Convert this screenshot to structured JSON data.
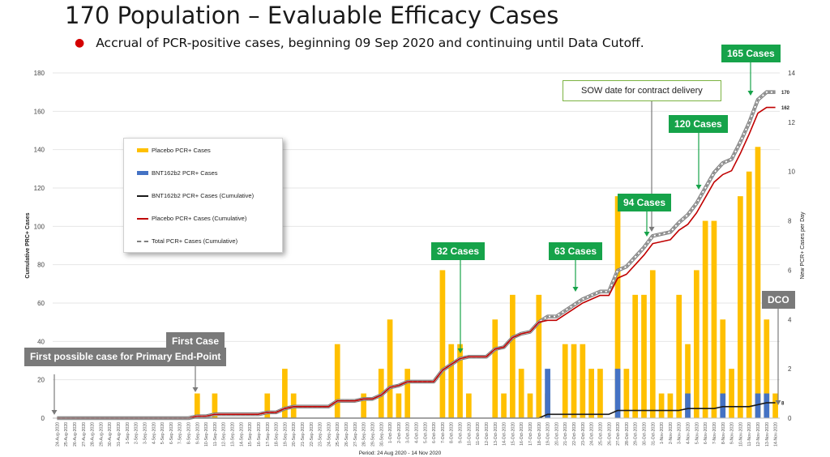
{
  "slide": {
    "title": "170 Population – Evaluable Efficacy Cases",
    "bullet": "Accrual of PCR-positive cases, beginning 09 Sep 2020 and continuing until Data Cutoff."
  },
  "colors": {
    "placebo": "#FFC000",
    "vaccine": "#4472C4",
    "vaccine_cum": "#1a1a1a",
    "placebo_cum": "#C00000",
    "total_cum": "#7f7f7f",
    "callout_green": "#16A34A",
    "callout_gray": "#7A7A7A"
  },
  "callouts": {
    "first_possible": "First possible case for Primary End-Point",
    "first_case": "First Case",
    "c32": "32 Cases",
    "c63": "63 Cases",
    "c94": "94 Cases",
    "c120": "120 Cases",
    "c165": "165 Cases",
    "sow": "SOW date for contract delivery",
    "dco": "DCO"
  },
  "chart_data": {
    "type": "bar",
    "xlabel": "Period: 24 Aug 2020 - 14 Nov 2020",
    "ylabel": "Cumulative PRC+ Cases",
    "y2label": "New PCR+ Cases per Day",
    "ylim": [
      0,
      180
    ],
    "y2lim": [
      0,
      14
    ],
    "yticks": [
      0,
      20,
      40,
      60,
      80,
      100,
      120,
      140,
      160,
      180
    ],
    "y2ticks": [
      0,
      2,
      4,
      6,
      8,
      10,
      12,
      14
    ],
    "grid": true,
    "legend_position": "upper-left",
    "categories": [
      "24-Aug-2020",
      "25-Aug-2020",
      "26-Aug-2020",
      "27-Aug-2020",
      "28-Aug-2020",
      "29-Aug-2020",
      "30-Aug-2020",
      "31-Aug-2020",
      "1-Sep-2020",
      "2-Sep-2020",
      "3-Sep-2020",
      "4-Sep-2020",
      "5-Sep-2020",
      "6-Sep-2020",
      "7-Sep-2020",
      "8-Sep-2020",
      "9-Sep-2020",
      "10-Sep-2020",
      "11-Sep-2020",
      "12-Sep-2020",
      "13-Sep-2020",
      "14-Sep-2020",
      "15-Sep-2020",
      "16-Sep-2020",
      "17-Sep-2020",
      "18-Sep-2020",
      "19-Sep-2020",
      "20-Sep-2020",
      "21-Sep-2020",
      "22-Sep-2020",
      "23-Sep-2020",
      "24-Sep-2020",
      "25-Sep-2020",
      "26-Sep-2020",
      "27-Sep-2020",
      "28-Sep-2020",
      "29-Sep-2020",
      "30-Sep-2020",
      "1-Oct-2020",
      "2-Oct-2020",
      "3-Oct-2020",
      "4-Oct-2020",
      "5-Oct-2020",
      "6-Oct-2020",
      "7-Oct-2020",
      "8-Oct-2020",
      "9-Oct-2020",
      "10-Oct-2020",
      "11-Oct-2020",
      "12-Oct-2020",
      "13-Oct-2020",
      "14-Oct-2020",
      "15-Oct-2020",
      "16-Oct-2020",
      "17-Oct-2020",
      "18-Oct-2020",
      "19-Oct-2020",
      "20-Oct-2020",
      "21-Oct-2020",
      "22-Oct-2020",
      "23-Oct-2020",
      "24-Oct-2020",
      "25-Oct-2020",
      "26-Oct-2020",
      "27-Oct-2020",
      "28-Oct-2020",
      "29-Oct-2020",
      "30-Oct-2020",
      "31-Oct-2020",
      "1-Nov-2020",
      "2-Nov-2020",
      "3-Nov-2020",
      "4-Nov-2020",
      "5-Nov-2020",
      "6-Nov-2020",
      "7-Nov-2020",
      "8-Nov-2020",
      "9-Nov-2020",
      "10-Nov-2020",
      "11-Nov-2020",
      "12-Nov-2020",
      "13-Nov-2020",
      "14-Nov-2020"
    ],
    "series": [
      {
        "name": "Placebo PCR+ Cases",
        "type": "bar",
        "axis": "right",
        "values": [
          0,
          0,
          0,
          0,
          0,
          0,
          0,
          0,
          0,
          0,
          0,
          0,
          0,
          0,
          0,
          0,
          1,
          0,
          1,
          0,
          0,
          0,
          0,
          0,
          1,
          0,
          2,
          1,
          0,
          0,
          0,
          0,
          3,
          0,
          0,
          1,
          0,
          2,
          4,
          1,
          2,
          0,
          0,
          0,
          6,
          3,
          3,
          1,
          0,
          0,
          4,
          1,
          5,
          2,
          1,
          5,
          1,
          0,
          3,
          3,
          3,
          2,
          2,
          0,
          9,
          2,
          5,
          5,
          6,
          1,
          1,
          5,
          3,
          6,
          8,
          8,
          4,
          2,
          9,
          10,
          11,
          4,
          1
        ]
      },
      {
        "name": "BNT162b2 PCR+ Cases",
        "type": "bar",
        "axis": "right",
        "values": [
          0,
          0,
          0,
          0,
          0,
          0,
          0,
          0,
          0,
          0,
          0,
          0,
          0,
          0,
          0,
          0,
          0,
          0,
          0,
          0,
          0,
          0,
          0,
          0,
          0,
          0,
          0,
          0,
          0,
          0,
          0,
          0,
          0,
          0,
          0,
          0,
          0,
          0,
          0,
          0,
          0,
          0,
          0,
          0,
          0,
          0,
          0,
          0,
          0,
          0,
          0,
          0,
          0,
          0,
          0,
          0,
          2,
          0,
          0,
          0,
          0,
          0,
          0,
          0,
          2,
          0,
          0,
          0,
          0,
          0,
          0,
          0,
          1,
          0,
          0,
          0,
          1,
          0,
          0,
          0,
          1,
          1,
          0
        ]
      },
      {
        "name": "BNT162b2 PCR+ Cases (Cumulative)",
        "type": "line",
        "axis": "left",
        "values": [
          0,
          0,
          0,
          0,
          0,
          0,
          0,
          0,
          0,
          0,
          0,
          0,
          0,
          0,
          0,
          0,
          0,
          0,
          0,
          0,
          0,
          0,
          0,
          0,
          0,
          0,
          0,
          0,
          0,
          0,
          0,
          0,
          0,
          0,
          0,
          0,
          0,
          0,
          0,
          0,
          0,
          0,
          0,
          0,
          0,
          0,
          0,
          0,
          0,
          0,
          0,
          0,
          0,
          0,
          0,
          0,
          2,
          2,
          2,
          2,
          2,
          2,
          2,
          2,
          4,
          4,
          4,
          4,
          4,
          4,
          4,
          4,
          5,
          5,
          5,
          5,
          6,
          6,
          6,
          6,
          7,
          8,
          8
        ]
      },
      {
        "name": "Placebo PCR+ Cases (Cumulative)",
        "type": "line",
        "axis": "left",
        "values": [
          0,
          0,
          0,
          0,
          0,
          0,
          0,
          0,
          0,
          0,
          0,
          0,
          0,
          0,
          0,
          0,
          1,
          1,
          2,
          2,
          2,
          2,
          2,
          2,
          3,
          3,
          5,
          6,
          6,
          6,
          6,
          6,
          9,
          9,
          9,
          10,
          10,
          12,
          16,
          17,
          19,
          19,
          19,
          19,
          25,
          28,
          31,
          32,
          32,
          32,
          36,
          37,
          42,
          44,
          45,
          50,
          51,
          51,
          54,
          57,
          60,
          62,
          64,
          64,
          73,
          75,
          80,
          85,
          91,
          92,
          93,
          98,
          101,
          107,
          115,
          123,
          127,
          129,
          138,
          148,
          159,
          162,
          162
        ]
      },
      {
        "name": "Total PCR+ Cases (Cumulative)",
        "type": "line",
        "axis": "left",
        "dashed": true,
        "values": [
          0,
          0,
          0,
          0,
          0,
          0,
          0,
          0,
          0,
          0,
          0,
          0,
          0,
          0,
          0,
          0,
          1,
          1,
          2,
          2,
          2,
          2,
          2,
          2,
          3,
          3,
          5,
          6,
          6,
          6,
          6,
          6,
          9,
          9,
          9,
          10,
          10,
          12,
          16,
          17,
          19,
          19,
          19,
          19,
          25,
          28,
          31,
          32,
          32,
          32,
          36,
          37,
          42,
          44,
          45,
          50,
          53,
          53,
          56,
          59,
          62,
          64,
          66,
          66,
          77,
          79,
          84,
          89,
          95,
          96,
          97,
          102,
          106,
          112,
          120,
          128,
          133,
          135,
          144,
          154,
          166,
          170,
          170
        ]
      }
    ],
    "end_labels": {
      "total": "170",
      "placebo": "162",
      "vaccine": "8"
    }
  },
  "legend": {
    "items": [
      "Placebo PCR+ Cases",
      "BNT162b2 PCR+ Cases",
      "BNT162b2 PCR+ Cases (Cumulative)",
      "Placebo PCR+ Cases (Cumulative)",
      "Total PCR+ Cases (Cumulative)"
    ]
  }
}
